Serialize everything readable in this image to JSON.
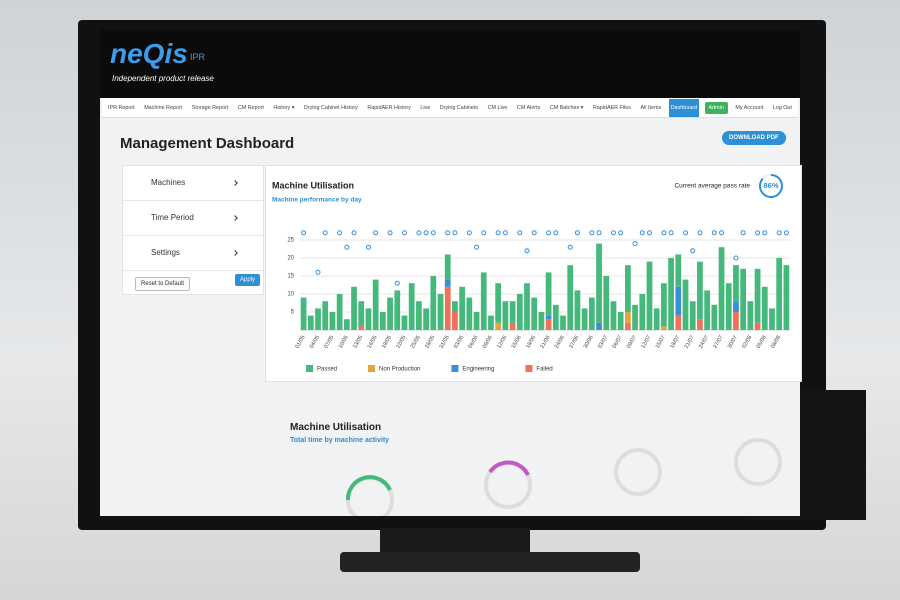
{
  "header": {
    "logo": "neQis",
    "logo_suffix": "IPR",
    "tagline": "Independent product release"
  },
  "nav": [
    {
      "label": "IPR Report"
    },
    {
      "label": "Machine Report"
    },
    {
      "label": "Storage Report"
    },
    {
      "label": "CM Report"
    },
    {
      "label": "History ▾"
    },
    {
      "label": "Drying Cabinet History"
    },
    {
      "label": "RapidAER History"
    },
    {
      "label": "Live"
    },
    {
      "label": "Drying Cabinets"
    },
    {
      "label": "CM Live"
    },
    {
      "label": "CM Alerts"
    },
    {
      "label": "CM Batches ▾"
    },
    {
      "label": "RapidAER Files"
    },
    {
      "label": "All Items"
    },
    {
      "label": "Dashboard",
      "style": "active"
    },
    {
      "label": "Admin",
      "style": "admin"
    },
    {
      "label": "My Account"
    },
    {
      "label": "Log Out"
    }
  ],
  "page": {
    "title": "Management Dashboard",
    "download_button": "DOWNLOAD PDF"
  },
  "sidebar": {
    "items": [
      "Machines",
      "Time Period",
      "Settings"
    ],
    "reset_button": "Reset to Default",
    "apply_button": "Apply"
  },
  "kpi": {
    "label": "Current average pass rate",
    "value": 86,
    "value_label": "86%"
  },
  "chart_data": {
    "type": "bar",
    "title": "Machine Utilisation",
    "subtitle": "Machine performance by day",
    "categories": [
      "01/05",
      null,
      "04/05",
      null,
      "07/05",
      null,
      "10/05",
      null,
      "13/05",
      null,
      "16/05",
      null,
      "19/05",
      null,
      "22/05",
      null,
      "25/05",
      null,
      "28/05",
      null,
      "31/05",
      null,
      "03/06",
      null,
      "06/06",
      null,
      "09/06",
      null,
      "12/06",
      null,
      "15/06",
      null,
      "18/06",
      null,
      "21/06",
      null,
      "24/06",
      null,
      "27/06",
      null,
      "30/06",
      null,
      "03/07",
      null,
      "06/07",
      null,
      "09/07",
      null,
      "12/07",
      null,
      "15/07",
      null,
      "18/07",
      null,
      "21/07",
      null,
      "24/07",
      null,
      "27/07",
      null,
      "30/07",
      null,
      "02/08",
      null,
      "05/08",
      null,
      "08/08",
      null
    ],
    "series": [
      {
        "name": "Passed",
        "color": "#45b97c",
        "values": [
          9,
          4,
          6,
          8,
          5,
          10,
          3,
          12,
          7,
          6,
          14,
          5,
          9,
          11,
          4,
          13,
          8,
          6,
          15,
          10,
          7,
          3,
          12,
          9,
          5,
          16,
          4,
          11,
          8,
          6,
          10,
          13,
          9,
          5,
          12,
          7,
          4,
          18,
          11,
          6,
          9,
          22,
          15,
          8,
          5,
          13,
          7,
          10,
          19,
          6,
          12,
          20,
          9,
          14,
          8,
          16,
          11,
          7,
          23,
          13,
          10,
          17,
          8,
          15,
          12,
          6,
          20,
          18
        ]
      },
      {
        "name": "Non Production",
        "color": "#e8a33c",
        "values": [
          0,
          0,
          0,
          0,
          0,
          0,
          0,
          0,
          0,
          0,
          0,
          0,
          0,
          0,
          0,
          0,
          0,
          0,
          0,
          0,
          0,
          0,
          0,
          0,
          0,
          0,
          0,
          2,
          0,
          0,
          0,
          0,
          0,
          0,
          0,
          0,
          0,
          0,
          0,
          0,
          0,
          0,
          0,
          0,
          0,
          3,
          0,
          0,
          0,
          0,
          1,
          0,
          0,
          0,
          0,
          0,
          0,
          0,
          0,
          0,
          0,
          0,
          0,
          0,
          0,
          0,
          0,
          0
        ]
      },
      {
        "name": "Engineering",
        "color": "#3b8fd9",
        "values": [
          0,
          0,
          0,
          0,
          0,
          0,
          0,
          0,
          0,
          0,
          0,
          0,
          0,
          0,
          0,
          0,
          0,
          0,
          0,
          0,
          2,
          0,
          0,
          0,
          0,
          0,
          0,
          0,
          0,
          0,
          0,
          0,
          0,
          0,
          1,
          0,
          0,
          0,
          0,
          0,
          0,
          2,
          0,
          0,
          0,
          0,
          0,
          0,
          0,
          0,
          0,
          0,
          8,
          0,
          0,
          0,
          0,
          0,
          0,
          0,
          3,
          0,
          0,
          0,
          0,
          0,
          0,
          0
        ]
      },
      {
        "name": "Failed",
        "color": "#f0705a",
        "values": [
          0,
          0,
          0,
          0,
          0,
          0,
          0,
          0,
          1,
          0,
          0,
          0,
          0,
          0,
          0,
          0,
          0,
          0,
          0,
          0,
          12,
          5,
          0,
          0,
          0,
          0,
          0,
          0,
          0,
          2,
          0,
          0,
          0,
          0,
          3,
          0,
          0,
          0,
          0,
          0,
          0,
          0,
          0,
          0,
          0,
          2,
          0,
          0,
          0,
          0,
          0,
          0,
          4,
          0,
          0,
          3,
          0,
          0,
          0,
          0,
          5,
          0,
          0,
          2,
          0,
          0,
          0,
          0
        ]
      }
    ],
    "markers": {
      "color": "#3b8fd9",
      "values": [
        27,
        null,
        16,
        27,
        null,
        27,
        23,
        27,
        null,
        23,
        27,
        null,
        27,
        13,
        27,
        null,
        27,
        27,
        27,
        null,
        27,
        27,
        null,
        27,
        23,
        27,
        null,
        27,
        27,
        null,
        27,
        22,
        27,
        null,
        27,
        27,
        null,
        23,
        27,
        null,
        27,
        27,
        null,
        27,
        27,
        null,
        24,
        27,
        27,
        null,
        27,
        27,
        null,
        27,
        22,
        27,
        null,
        27,
        27,
        null,
        20,
        27,
        null,
        27,
        27,
        null,
        27,
        27
      ]
    },
    "ylim": [
      0,
      30
    ],
    "yticks": [
      5,
      10,
      15,
      20,
      25
    ],
    "grid": true
  },
  "section2": {
    "title": "Machine Utilisation",
    "subtitle": "Total time by machine activity"
  }
}
